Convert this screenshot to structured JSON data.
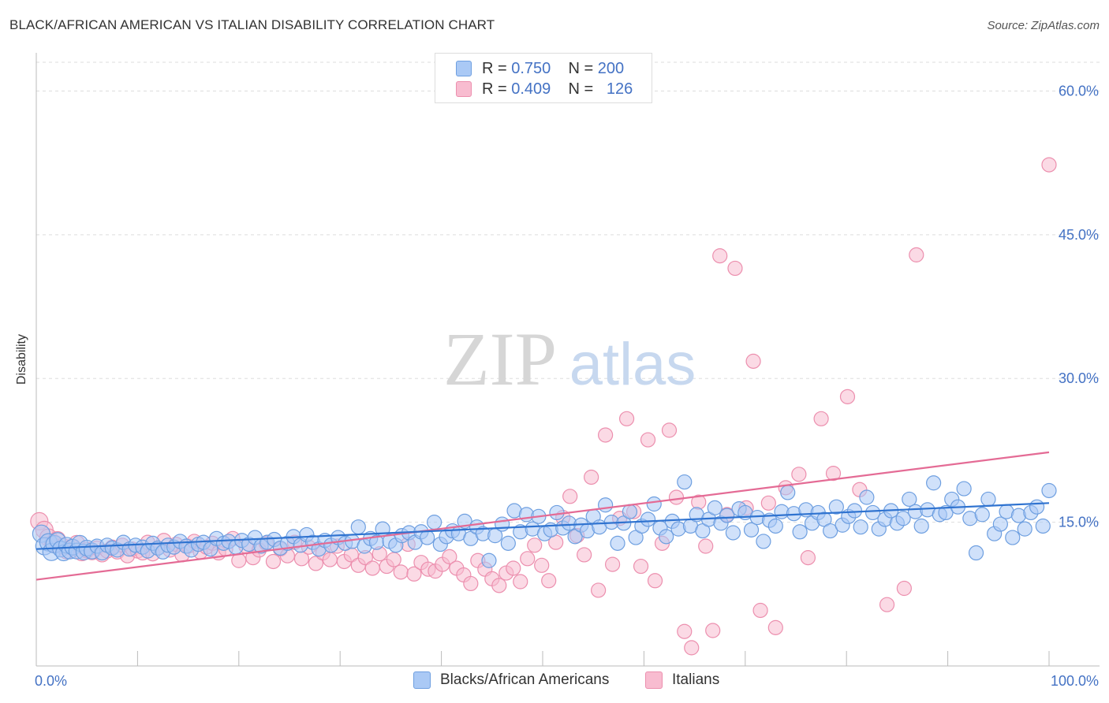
{
  "header": {
    "title": "BLACK/AFRICAN AMERICAN VS ITALIAN DISABILITY CORRELATION CHART",
    "source": "Source: ZipAtlas.com"
  },
  "watermark": {
    "zip": "ZIP",
    "atlas": "atlas"
  },
  "legend_top": {
    "rows": [
      {
        "r_label": "R =",
        "r_value": "0.750",
        "n_label": "N =",
        "n_value": "200",
        "color": "#aac9f5"
      },
      {
        "r_label": "R =",
        "r_value": "0.409",
        "n_label": "N =",
        "n_value": "126",
        "color": "#f8bcd0"
      }
    ]
  },
  "legend_bottom": [
    {
      "label": "Blacks/African Americans",
      "color": "#aac9f5"
    },
    {
      "label": "Italians",
      "color": "#f8bcd0"
    }
  ],
  "colors": {
    "blue_fill": "#aac9f5",
    "blue_stroke": "#6e9fe0",
    "blue_line": "#2f73d0",
    "pink_fill": "#f8bcd0",
    "pink_stroke": "#ec8fae",
    "pink_line": "#e46b95",
    "tick_text": "#4472c4",
    "grid": "#dddddd"
  },
  "chart_data": {
    "type": "scatter",
    "title": "BLACK/AFRICAN AMERICAN VS ITALIAN DISABILITY CORRELATION CHART",
    "xlabel": "",
    "ylabel": "Disability",
    "xlim": [
      0,
      100
    ],
    "ylim": [
      0,
      63
    ],
    "x_tick_labels": [
      "0.0%",
      "100.0%"
    ],
    "y_ticks": [
      15,
      30,
      45,
      60
    ],
    "y_tick_labels": [
      "15.0%",
      "30.0%",
      "45.0%",
      "60.0%"
    ],
    "grid": "horizontal dashed",
    "legend_position": "top-center",
    "series": [
      {
        "name": "Blacks/African Americans",
        "r": 0.75,
        "n": 200,
        "trend": {
          "x": [
            0,
            100
          ],
          "y": [
            12.2,
            17.0
          ]
        },
        "points": [
          [
            0.5,
            13.8
          ],
          [
            0.8,
            12.5
          ],
          [
            1.2,
            12.9
          ],
          [
            1.5,
            11.9
          ],
          [
            1.8,
            12.7
          ],
          [
            2.1,
            13.1
          ],
          [
            2.4,
            12.2
          ],
          [
            2.7,
            11.8
          ],
          [
            3.0,
            12.6
          ],
          [
            3.3,
            12.0
          ],
          [
            3.6,
            12.4
          ],
          [
            4.0,
            12.0
          ],
          [
            4.3,
            12.8
          ],
          [
            4.7,
            11.9
          ],
          [
            5.0,
            12.3
          ],
          [
            5.5,
            12.0
          ],
          [
            6.0,
            12.5
          ],
          [
            6.5,
            11.8
          ],
          [
            7.0,
            12.6
          ],
          [
            7.5,
            12.3
          ],
          [
            8.0,
            12.1
          ],
          [
            8.6,
            12.9
          ],
          [
            9.2,
            12.2
          ],
          [
            9.8,
            12.6
          ],
          [
            10.5,
            12.4
          ],
          [
            11.0,
            12.0
          ],
          [
            11.5,
            12.8
          ],
          [
            12.0,
            12.3
          ],
          [
            12.5,
            11.9
          ],
          [
            13.0,
            12.6
          ],
          [
            13.6,
            12.4
          ],
          [
            14.2,
            13.0
          ],
          [
            14.8,
            12.5
          ],
          [
            15.3,
            12.1
          ],
          [
            16.0,
            12.7
          ],
          [
            16.5,
            12.9
          ],
          [
            17.2,
            12.2
          ],
          [
            17.8,
            13.3
          ],
          [
            18.5,
            12.8
          ],
          [
            19.0,
            13.0
          ],
          [
            19.7,
            12.4
          ],
          [
            20.3,
            13.1
          ],
          [
            21.0,
            12.7
          ],
          [
            21.6,
            13.4
          ],
          [
            22.2,
            12.5
          ],
          [
            22.8,
            12.9
          ],
          [
            23.5,
            13.2
          ],
          [
            24.1,
            12.3
          ],
          [
            24.8,
            12.8
          ],
          [
            25.4,
            13.5
          ],
          [
            26.1,
            12.6
          ],
          [
            26.7,
            13.7
          ],
          [
            27.3,
            12.9
          ],
          [
            27.9,
            12.2
          ],
          [
            28.5,
            13.1
          ],
          [
            29.1,
            12.6
          ],
          [
            29.8,
            13.4
          ],
          [
            30.5,
            12.8
          ],
          [
            31.2,
            13.0
          ],
          [
            31.8,
            14.5
          ],
          [
            32.4,
            12.5
          ],
          [
            33.0,
            13.3
          ],
          [
            33.6,
            12.9
          ],
          [
            34.2,
            14.3
          ],
          [
            34.9,
            13.0
          ],
          [
            35.5,
            12.6
          ],
          [
            36.1,
            13.6
          ],
          [
            36.8,
            13.9
          ],
          [
            37.4,
            12.9
          ],
          [
            38.0,
            14.0
          ],
          [
            38.6,
            13.4
          ],
          [
            39.3,
            15.0
          ],
          [
            39.9,
            12.7
          ],
          [
            40.5,
            13.5
          ],
          [
            41.1,
            14.1
          ],
          [
            41.7,
            13.8
          ],
          [
            42.3,
            15.1
          ],
          [
            42.9,
            13.3
          ],
          [
            43.5,
            14.5
          ],
          [
            44.1,
            13.8
          ],
          [
            44.7,
            11.0
          ],
          [
            45.3,
            13.6
          ],
          [
            46.0,
            14.8
          ],
          [
            46.6,
            12.8
          ],
          [
            47.2,
            16.2
          ],
          [
            47.8,
            14.0
          ],
          [
            48.4,
            15.8
          ],
          [
            49.0,
            14.3
          ],
          [
            49.6,
            15.6
          ],
          [
            50.2,
            13.8
          ],
          [
            50.8,
            14.2
          ],
          [
            51.4,
            16.0
          ],
          [
            52.0,
            14.4
          ],
          [
            52.6,
            14.9
          ],
          [
            53.2,
            13.5
          ],
          [
            53.8,
            14.7
          ],
          [
            54.4,
            14.1
          ],
          [
            55.0,
            15.6
          ],
          [
            55.6,
            14.5
          ],
          [
            56.2,
            16.8
          ],
          [
            56.8,
            15.0
          ],
          [
            57.4,
            12.8
          ],
          [
            58.0,
            14.9
          ],
          [
            58.6,
            16.1
          ],
          [
            59.2,
            13.4
          ],
          [
            59.8,
            14.6
          ],
          [
            60.4,
            15.3
          ],
          [
            61.0,
            16.9
          ],
          [
            61.6,
            14.4
          ],
          [
            62.2,
            13.5
          ],
          [
            62.8,
            15.1
          ],
          [
            63.4,
            14.3
          ],
          [
            64.0,
            19.2
          ],
          [
            64.6,
            14.6
          ],
          [
            65.2,
            15.8
          ],
          [
            65.8,
            14.1
          ],
          [
            66.4,
            15.3
          ],
          [
            67.0,
            16.5
          ],
          [
            67.6,
            14.9
          ],
          [
            68.2,
            15.7
          ],
          [
            68.8,
            13.9
          ],
          [
            69.4,
            16.4
          ],
          [
            70.0,
            16.0
          ],
          [
            70.6,
            14.2
          ],
          [
            71.2,
            15.5
          ],
          [
            71.8,
            13.0
          ],
          [
            72.4,
            15.2
          ],
          [
            73.0,
            14.6
          ],
          [
            73.6,
            16.1
          ],
          [
            74.2,
            18.1
          ],
          [
            74.8,
            15.9
          ],
          [
            75.4,
            14.0
          ],
          [
            76.0,
            16.3
          ],
          [
            76.6,
            14.9
          ],
          [
            77.2,
            16.0
          ],
          [
            77.8,
            15.3
          ],
          [
            78.4,
            14.1
          ],
          [
            79.0,
            16.6
          ],
          [
            79.6,
            14.7
          ],
          [
            80.2,
            15.6
          ],
          [
            80.8,
            16.2
          ],
          [
            81.4,
            14.5
          ],
          [
            82.0,
            17.6
          ],
          [
            82.6,
            16.0
          ],
          [
            83.2,
            14.3
          ],
          [
            83.8,
            15.3
          ],
          [
            84.4,
            16.2
          ],
          [
            85.0,
            14.9
          ],
          [
            85.6,
            15.4
          ],
          [
            86.2,
            17.4
          ],
          [
            86.8,
            16.1
          ],
          [
            87.4,
            14.6
          ],
          [
            88.0,
            16.3
          ],
          [
            88.6,
            19.1
          ],
          [
            89.2,
            15.8
          ],
          [
            89.8,
            16.0
          ],
          [
            90.4,
            17.4
          ],
          [
            91.0,
            16.6
          ],
          [
            91.6,
            18.5
          ],
          [
            92.2,
            15.4
          ],
          [
            92.8,
            11.8
          ],
          [
            93.4,
            15.8
          ],
          [
            94.0,
            17.4
          ],
          [
            94.6,
            13.8
          ],
          [
            95.2,
            14.8
          ],
          [
            95.8,
            16.1
          ],
          [
            96.4,
            13.4
          ],
          [
            97.0,
            15.7
          ],
          [
            97.6,
            14.3
          ],
          [
            98.2,
            16.0
          ],
          [
            98.8,
            16.6
          ],
          [
            99.4,
            14.6
          ],
          [
            100.0,
            18.3
          ]
        ]
      },
      {
        "name": "Italians",
        "r": 0.409,
        "n": 126,
        "trend": {
          "x": [
            0,
            100
          ],
          "y": [
            9.0,
            22.3
          ]
        },
        "points": [
          [
            0.3,
            15.1
          ],
          [
            0.8,
            14.2
          ],
          [
            1.2,
            13.4
          ],
          [
            1.7,
            12.8
          ],
          [
            2.1,
            13.2
          ],
          [
            2.6,
            12.5
          ],
          [
            3.0,
            12.0
          ],
          [
            3.5,
            12.4
          ],
          [
            4.0,
            12.8
          ],
          [
            4.5,
            11.8
          ],
          [
            5.0,
            12.1
          ],
          [
            5.5,
            11.9
          ],
          [
            6.0,
            12.3
          ],
          [
            6.5,
            11.6
          ],
          [
            7.0,
            12.0
          ],
          [
            7.5,
            12.4
          ],
          [
            8.0,
            11.9
          ],
          [
            8.5,
            12.6
          ],
          [
            9.0,
            11.5
          ],
          [
            9.5,
            12.2
          ],
          [
            10.0,
            12.0
          ],
          [
            10.5,
            11.8
          ],
          [
            11.0,
            12.9
          ],
          [
            11.5,
            11.7
          ],
          [
            12.0,
            12.3
          ],
          [
            12.6,
            13.1
          ],
          [
            13.2,
            12.1
          ],
          [
            13.8,
            12.7
          ],
          [
            14.4,
            11.6
          ],
          [
            15.0,
            12.5
          ],
          [
            15.6,
            13.0
          ],
          [
            16.2,
            11.9
          ],
          [
            16.8,
            12.4
          ],
          [
            17.4,
            12.8
          ],
          [
            18.0,
            11.8
          ],
          [
            18.7,
            12.2
          ],
          [
            19.4,
            13.3
          ],
          [
            20.0,
            11.0
          ],
          [
            20.7,
            12.5
          ],
          [
            21.4,
            11.3
          ],
          [
            22.0,
            12.1
          ],
          [
            22.7,
            12.8
          ],
          [
            23.4,
            10.9
          ],
          [
            24.1,
            12.2
          ],
          [
            24.8,
            11.5
          ],
          [
            25.5,
            12.9
          ],
          [
            26.2,
            11.2
          ],
          [
            26.9,
            12.4
          ],
          [
            27.6,
            10.7
          ],
          [
            28.3,
            11.8
          ],
          [
            29.0,
            11.1
          ],
          [
            29.7,
            12.5
          ],
          [
            30.4,
            10.9
          ],
          [
            31.1,
            11.6
          ],
          [
            31.8,
            10.5
          ],
          [
            32.5,
            11.3
          ],
          [
            33.2,
            10.2
          ],
          [
            33.9,
            11.7
          ],
          [
            34.6,
            10.4
          ],
          [
            35.3,
            11.1
          ],
          [
            36.0,
            9.8
          ],
          [
            36.7,
            12.7
          ],
          [
            37.3,
            9.6
          ],
          [
            38.0,
            10.8
          ],
          [
            38.7,
            10.1
          ],
          [
            39.4,
            9.9
          ],
          [
            40.1,
            10.6
          ],
          [
            40.8,
            11.4
          ],
          [
            41.5,
            10.2
          ],
          [
            42.2,
            9.5
          ],
          [
            42.9,
            8.6
          ],
          [
            43.6,
            11.0
          ],
          [
            44.3,
            10.1
          ],
          [
            45.0,
            9.1
          ],
          [
            45.7,
            8.4
          ],
          [
            46.4,
            9.7
          ],
          [
            47.1,
            10.2
          ],
          [
            47.8,
            8.8
          ],
          [
            48.5,
            11.2
          ],
          [
            49.2,
            12.6
          ],
          [
            49.9,
            10.5
          ],
          [
            50.6,
            8.9
          ],
          [
            51.3,
            12.9
          ],
          [
            52.0,
            15.5
          ],
          [
            52.7,
            17.7
          ],
          [
            53.4,
            13.6
          ],
          [
            54.1,
            11.6
          ],
          [
            54.8,
            19.7
          ],
          [
            55.5,
            7.9
          ],
          [
            56.2,
            24.1
          ],
          [
            56.9,
            10.6
          ],
          [
            57.6,
            15.4
          ],
          [
            58.3,
            25.8
          ],
          [
            59.0,
            16.1
          ],
          [
            59.7,
            10.4
          ],
          [
            60.4,
            23.6
          ],
          [
            61.1,
            8.9
          ],
          [
            61.8,
            12.8
          ],
          [
            62.5,
            24.6
          ],
          [
            63.2,
            17.6
          ],
          [
            64.0,
            3.6
          ],
          [
            64.7,
            1.9
          ],
          [
            65.4,
            17.1
          ],
          [
            66.1,
            12.5
          ],
          [
            66.8,
            3.7
          ],
          [
            67.5,
            42.8
          ],
          [
            68.2,
            15.8
          ],
          [
            69.0,
            41.5
          ],
          [
            70.1,
            16.5
          ],
          [
            70.8,
            31.8
          ],
          [
            71.5,
            5.8
          ],
          [
            72.3,
            17.0
          ],
          [
            73.0,
            4.0
          ],
          [
            74.0,
            18.6
          ],
          [
            75.3,
            20.0
          ],
          [
            76.2,
            11.3
          ],
          [
            77.5,
            25.8
          ],
          [
            78.7,
            20.1
          ],
          [
            80.1,
            28.1
          ],
          [
            81.3,
            18.4
          ],
          [
            84.0,
            6.4
          ],
          [
            85.7,
            8.1
          ],
          [
            86.9,
            42.9
          ],
          [
            100.0,
            52.3
          ]
        ]
      }
    ]
  }
}
